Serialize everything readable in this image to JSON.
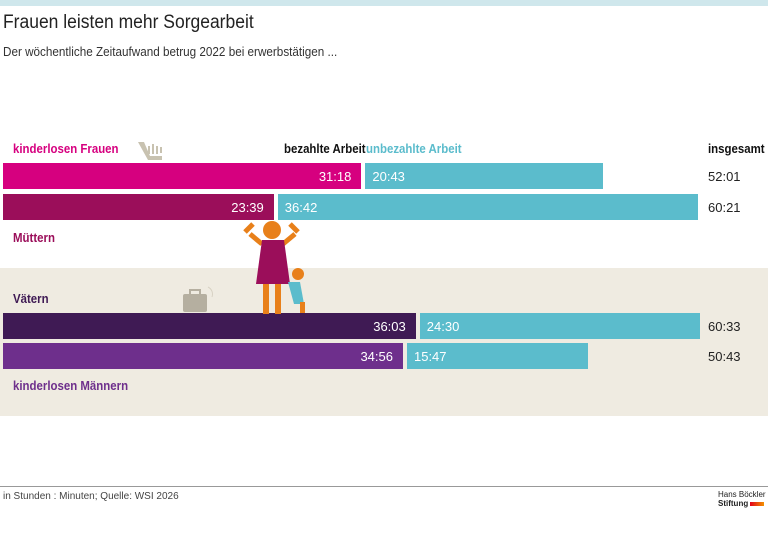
{
  "header": {
    "title": "Frauen leisten mehr Sorgearbeit",
    "subtitle": "Der wöchentliche Zeitaufwand betrug 2022 bei erwerbstätigen ..."
  },
  "legend": {
    "paid": "bezahlte Arbeit",
    "unpaid": "unbezahlte Arbeit",
    "total": "insgesamt"
  },
  "chart_data": {
    "type": "bar",
    "stacked": true,
    "orientation": "horizontal",
    "unit": "Stunden:Minuten",
    "series_names": [
      "bezahlte Arbeit",
      "unbezahlte Arbeit"
    ],
    "rows": [
      {
        "label": "kinderlosen Frauen",
        "paid": "31:18",
        "unpaid": "20:43",
        "total": "52:01",
        "color": "#d6007f"
      },
      {
        "label": "Müttern",
        "paid": "23:39",
        "unpaid": "36:42",
        "total": "60:21",
        "color": "#9b0e5a"
      },
      {
        "label": "Vätern",
        "paid": "36:03",
        "unpaid": "24:30",
        "total": "60:33",
        "color": "#3f1a54"
      },
      {
        "label": "kinderlosen Männern",
        "paid": "34:56",
        "unpaid": "15:47",
        "total": "50:43",
        "color": "#6e2f8c"
      }
    ],
    "unpaid_color": "#5bbccc"
  },
  "footer": {
    "source": "in Stunden : Minuten; Quelle: WSI 2026",
    "logo_line1": "Hans Böckler",
    "logo_line2": "Stiftung"
  }
}
